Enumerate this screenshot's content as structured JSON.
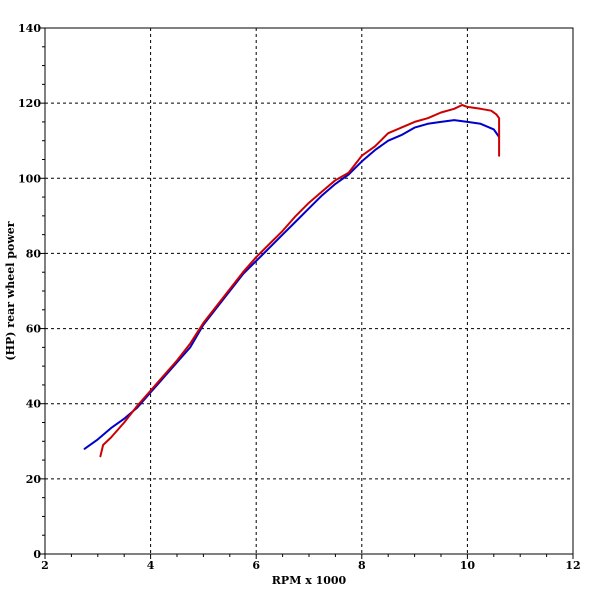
{
  "chart_data": {
    "type": "line",
    "xlabel": "RPM x 1000",
    "ylabel": "(HP) rear wheel power",
    "xlim": [
      2,
      12
    ],
    "ylim": [
      0,
      140
    ],
    "xticks": [
      2,
      4,
      6,
      8,
      10,
      12
    ],
    "yticks": [
      0,
      20,
      40,
      60,
      80,
      100,
      120,
      140
    ],
    "x_gridlines": [
      4,
      6,
      8,
      10
    ],
    "y_gridlines": [
      20,
      40,
      60,
      80,
      100,
      120
    ],
    "grid": true,
    "legend": "none",
    "series": [
      {
        "color": "#0000cc",
        "x": [
          2.75,
          3.0,
          3.25,
          3.5,
          3.75,
          4.0,
          4.25,
          4.5,
          4.75,
          5.0,
          5.25,
          5.5,
          5.75,
          6.0,
          6.25,
          6.5,
          6.75,
          7.0,
          7.25,
          7.5,
          7.75,
          8.0,
          8.25,
          8.5,
          8.75,
          9.0,
          9.25,
          9.5,
          9.75,
          10.0,
          10.25,
          10.5,
          10.6
        ],
        "y": [
          28,
          30.5,
          33.5,
          36,
          39,
          43,
          47,
          51,
          55,
          61,
          65.5,
          70,
          74.5,
          78,
          81.5,
          85,
          88.5,
          92,
          95.5,
          98.5,
          101,
          104.5,
          107.5,
          110,
          111.5,
          113.5,
          114.5,
          115,
          115.5,
          115,
          114.5,
          113,
          111
        ]
      },
      {
        "color": "#cc0000",
        "x": [
          3.05,
          3.1,
          3.25,
          3.5,
          3.75,
          4.0,
          4.25,
          4.5,
          4.75,
          5.0,
          5.25,
          5.5,
          5.75,
          6.0,
          6.25,
          6.5,
          6.75,
          7.0,
          7.25,
          7.5,
          7.75,
          8.0,
          8.25,
          8.5,
          8.75,
          9.0,
          9.25,
          9.5,
          9.75,
          9.9,
          10.0,
          10.25,
          10.45,
          10.55,
          10.6,
          10.6
        ],
        "y": [
          26,
          29,
          31,
          35,
          39.5,
          43.5,
          47.5,
          51.5,
          56,
          61.5,
          66,
          70.5,
          75,
          79,
          82.5,
          86,
          90,
          93.5,
          96.5,
          99.5,
          101.5,
          106,
          108.5,
          112,
          113.5,
          115,
          116,
          117.5,
          118.5,
          119.5,
          119,
          118.5,
          118,
          117,
          116,
          106
        ]
      }
    ]
  }
}
